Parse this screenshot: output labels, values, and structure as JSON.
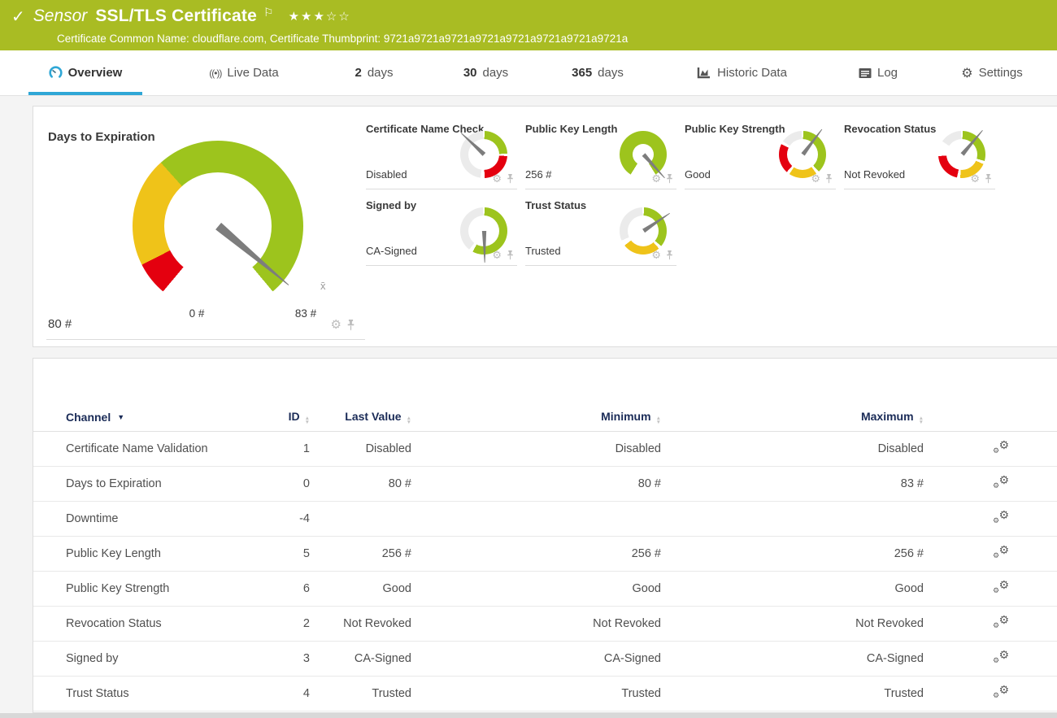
{
  "header": {
    "check_icon": "✓",
    "kind_label": "Sensor",
    "title": "SSL/TLS Certificate",
    "stars_filled": 3,
    "stars_total": 5,
    "subtitle": "Certificate Common Name: cloudflare.com, Certificate Thumbprint: 9721a9721a9721a9721a9721a9721a9721a9721a"
  },
  "colors": {
    "header_bg": "#a9bc23",
    "green": "#9dc41d",
    "yellow": "#efc319",
    "red": "#e4000f",
    "gray": "#ebebeb",
    "needle": "#7d7d7d",
    "active_tab": "#2fa7d6",
    "table_header_text": "#1a2b57"
  },
  "tabs": [
    {
      "id": "overview",
      "icon": "gauge",
      "label": "Overview",
      "active": true
    },
    {
      "id": "live-data",
      "icon": "broadcast",
      "label": "Live Data",
      "active": false
    },
    {
      "id": "2-days",
      "num": "2",
      "label": "days",
      "active": false
    },
    {
      "id": "30-days",
      "num": "30",
      "label": "days",
      "active": false
    },
    {
      "id": "365-days",
      "num": "365",
      "label": "days",
      "active": false
    },
    {
      "id": "historic-data",
      "icon": "chart",
      "label": "Historic Data",
      "active": false
    },
    {
      "id": "log",
      "icon": "log",
      "label": "Log",
      "active": false
    },
    {
      "id": "settings",
      "icon": "gear",
      "label": "Settings",
      "active": false
    }
  ],
  "gauge_panel": {
    "main_gauge": {
      "title": "Days to Expiration",
      "value_label": "80 #",
      "min_label": "0 #",
      "max_label": "83 #",
      "avg_marker_label": "x̄",
      "range": [
        0,
        83
      ],
      "value": 80,
      "needle_deg": 130,
      "ring": [
        {
          "c": "red",
          "a": 220,
          "b": 243
        },
        {
          "c": "yellow",
          "a": 243,
          "b": 318
        },
        {
          "c": "green",
          "a": 318,
          "b": 360
        },
        {
          "c": "green",
          "a": 0,
          "b": 140
        }
      ]
    },
    "small_gauges": [
      {
        "title": "Certificate Name Check",
        "value": "Disabled",
        "needle_deg": 313,
        "thick": false,
        "ring": [
          {
            "c": "green",
            "a": 2,
            "b": 88
          },
          {
            "c": "red",
            "a": 94,
            "b": 178
          },
          {
            "c": "gray",
            "a": 188,
            "b": 358
          }
        ]
      },
      {
        "title": "Public Key Length",
        "value": "256 #",
        "needle_deg": 138,
        "thick": true,
        "ring": [
          {
            "c": "green",
            "a": 0,
            "b": 148
          },
          {
            "c": "green",
            "a": 212,
            "b": 360
          }
        ]
      },
      {
        "title": "Public Key Strength",
        "value": "Good",
        "needle_deg": 37,
        "thick": false,
        "ring": [
          {
            "c": "green",
            "a": 2,
            "b": 136
          },
          {
            "c": "yellow",
            "a": 144,
            "b": 214
          },
          {
            "c": "red",
            "a": 222,
            "b": 296
          },
          {
            "c": "gray",
            "a": 304,
            "b": 358
          }
        ]
      },
      {
        "title": "Revocation Status",
        "value": "Not Revoked",
        "needle_deg": 40,
        "thick": false,
        "ring": [
          {
            "c": "green",
            "a": 2,
            "b": 106
          },
          {
            "c": "yellow",
            "a": 114,
            "b": 184
          },
          {
            "c": "red",
            "a": 192,
            "b": 266
          },
          {
            "c": "gray",
            "a": 304,
            "b": 358
          }
        ]
      },
      {
        "title": "Signed by",
        "value": "CA-Signed",
        "needle_deg": 179,
        "thick": false,
        "ring": [
          {
            "c": "green",
            "a": 2,
            "b": 208
          },
          {
            "c": "gray",
            "a": 218,
            "b": 358
          }
        ]
      },
      {
        "title": "Trust Status",
        "value": "Trusted",
        "needle_deg": 56,
        "thick": false,
        "ring": [
          {
            "c": "green",
            "a": 2,
            "b": 130
          },
          {
            "c": "yellow",
            "a": 138,
            "b": 232
          },
          {
            "c": "gray",
            "a": 246,
            "b": 358
          }
        ]
      }
    ]
  },
  "table": {
    "columns": [
      {
        "key": "channel",
        "label": "Channel",
        "sorted": true
      },
      {
        "key": "id",
        "label": "ID",
        "sorted": false
      },
      {
        "key": "last",
        "label": "Last Value",
        "sorted": false
      },
      {
        "key": "min",
        "label": "Minimum",
        "sorted": false
      },
      {
        "key": "max",
        "label": "Maximum",
        "sorted": false
      }
    ],
    "rows": [
      {
        "channel": "Certificate Name Validation",
        "id": "1",
        "last": "Disabled",
        "min": "Disabled",
        "max": "Disabled"
      },
      {
        "channel": "Days to Expiration",
        "id": "0",
        "last": "80 #",
        "min": "80 #",
        "max": "83 #"
      },
      {
        "channel": "Downtime",
        "id": "-4",
        "last": "",
        "min": "",
        "max": ""
      },
      {
        "channel": "Public Key Length",
        "id": "5",
        "last": "256 #",
        "min": "256 #",
        "max": "256 #"
      },
      {
        "channel": "Public Key Strength",
        "id": "6",
        "last": "Good",
        "min": "Good",
        "max": "Good"
      },
      {
        "channel": "Revocation Status",
        "id": "2",
        "last": "Not Revoked",
        "min": "Not Revoked",
        "max": "Not Revoked"
      },
      {
        "channel": "Signed by",
        "id": "3",
        "last": "CA-Signed",
        "min": "CA-Signed",
        "max": "CA-Signed"
      },
      {
        "channel": "Trust Status",
        "id": "4",
        "last": "Trusted",
        "min": "Trusted",
        "max": "Trusted"
      }
    ]
  }
}
